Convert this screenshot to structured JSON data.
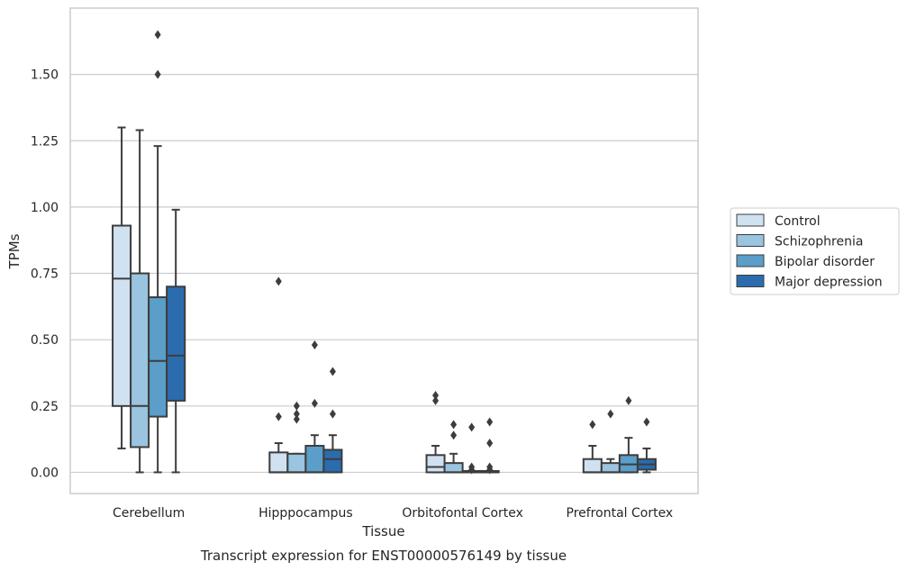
{
  "chart_data": {
    "type": "box",
    "title": "Transcript expression for ENST00000576149 by tissue",
    "xlabel": "Tissue",
    "ylabel": "TPMs",
    "ylim": [
      -0.08,
      1.75
    ],
    "yticks": [
      "0.00",
      "0.25",
      "0.50",
      "0.75",
      "1.00",
      "1.25",
      "1.50"
    ],
    "grid": true,
    "legend_position": "right",
    "categories": [
      "Cerebellum",
      "Hipppocampus",
      "Orbitofontal Cortex",
      "Prefrontal Cortex"
    ],
    "series": [
      {
        "name": "Control",
        "color": "#d0e1f2",
        "boxes": [
          {
            "q1": 0.25,
            "median": 0.73,
            "q3": 0.93,
            "whislo": 0.09,
            "whishi": 1.3,
            "fliers": []
          },
          {
            "q1": 0.0,
            "median": 0.0,
            "q3": 0.075,
            "whislo": 0.0,
            "whishi": 0.11,
            "fliers": [
              0.21,
              0.72
            ]
          },
          {
            "q1": 0.0,
            "median": 0.02,
            "q3": 0.065,
            "whislo": 0.0,
            "whishi": 0.1,
            "fliers": [
              0.27,
              0.29
            ]
          },
          {
            "q1": 0.0,
            "median": 0.0,
            "q3": 0.05,
            "whislo": 0.0,
            "whishi": 0.1,
            "fliers": [
              0.18
            ]
          }
        ]
      },
      {
        "name": "Schizophrenia",
        "color": "#9ac4df",
        "boxes": [
          {
            "q1": 0.095,
            "median": 0.25,
            "q3": 0.75,
            "whislo": 0.0,
            "whishi": 1.29,
            "fliers": []
          },
          {
            "q1": 0.0,
            "median": 0.0,
            "q3": 0.07,
            "whislo": 0.0,
            "whishi": 0.07,
            "fliers": [
              0.2,
              0.22,
              0.25
            ]
          },
          {
            "q1": 0.0,
            "median": 0.0,
            "q3": 0.035,
            "whislo": 0.0,
            "whishi": 0.07,
            "fliers": [
              0.14,
              0.18
            ]
          },
          {
            "q1": 0.0,
            "median": 0.0,
            "q3": 0.035,
            "whislo": 0.0,
            "whishi": 0.05,
            "fliers": [
              0.22
            ]
          }
        ]
      },
      {
        "name": "Bipolar disorder",
        "color": "#5a9ec9",
        "boxes": [
          {
            "q1": 0.21,
            "median": 0.42,
            "q3": 0.66,
            "whislo": 0.0,
            "whishi": 1.23,
            "fliers": [
              1.5,
              1.65
            ]
          },
          {
            "q1": 0.0,
            "median": 0.0,
            "q3": 0.1,
            "whislo": 0.0,
            "whishi": 0.14,
            "fliers": [
              0.26,
              0.48
            ]
          },
          {
            "q1": 0.0,
            "median": 0.0,
            "q3": 0.005,
            "whislo": 0.0,
            "whishi": 0.005,
            "fliers": [
              0.01,
              0.02,
              0.17
            ]
          },
          {
            "q1": 0.0,
            "median": 0.03,
            "q3": 0.065,
            "whislo": 0.0,
            "whishi": 0.13,
            "fliers": [
              0.27
            ]
          }
        ]
      },
      {
        "name": "Major depression",
        "color": "#2a6cad",
        "boxes": [
          {
            "q1": 0.27,
            "median": 0.44,
            "q3": 0.7,
            "whislo": 0.0,
            "whishi": 0.99,
            "fliers": []
          },
          {
            "q1": 0.0,
            "median": 0.05,
            "q3": 0.085,
            "whislo": 0.0,
            "whishi": 0.14,
            "fliers": [
              0.22,
              0.38
            ]
          },
          {
            "q1": 0.0,
            "median": 0.0,
            "q3": 0.005,
            "whislo": 0.0,
            "whishi": 0.005,
            "fliers": [
              0.01,
              0.02,
              0.11,
              0.19
            ]
          },
          {
            "q1": 0.01,
            "median": 0.03,
            "q3": 0.05,
            "whislo": 0.0,
            "whishi": 0.09,
            "fliers": [
              0.19
            ]
          }
        ]
      }
    ]
  }
}
